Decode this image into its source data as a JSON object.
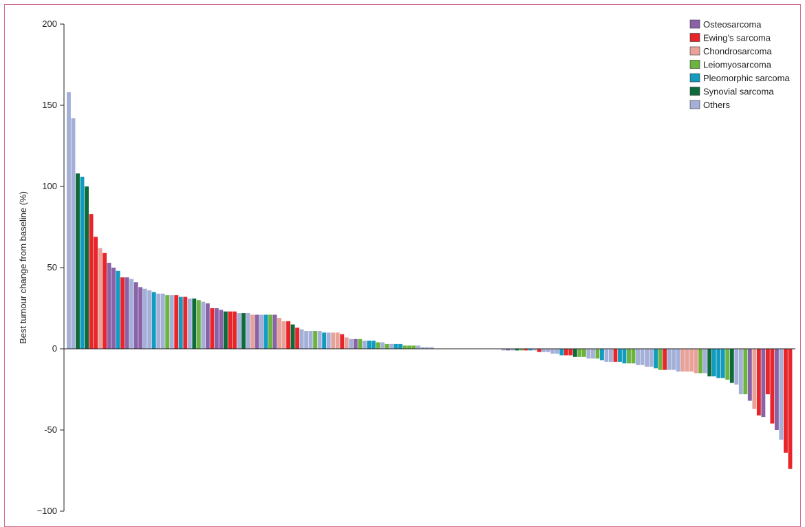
{
  "chart_data": {
    "type": "bar",
    "title": "",
    "xlabel": "",
    "ylabel": "Best tumour change from baseline (%)",
    "ylim": [
      -100,
      200
    ],
    "yticks": [
      {
        "value": 200,
        "label": "200"
      },
      {
        "value": 150,
        "label": "150"
      },
      {
        "value": 100,
        "label": "100"
      },
      {
        "value": 50,
        "label": "50"
      },
      {
        "value": 0,
        "label": "0"
      },
      {
        "value": -50,
        "label": "-50"
      },
      {
        "value": -100,
        "label": "−100"
      }
    ],
    "grid": false,
    "legend_position": "top-right",
    "legend": [
      {
        "key": "O",
        "name": "Osteosarcoma",
        "color": "#8a62a8"
      },
      {
        "key": "E",
        "name": "Ewing’s sarcoma",
        "color": "#e8262a"
      },
      {
        "key": "C",
        "name": "Chondrosarcoma",
        "color": "#e8a29a"
      },
      {
        "key": "L",
        "name": "Leiomyosarcoma",
        "color": "#6db33f"
      },
      {
        "key": "P",
        "name": "Pleomorphic sarcoma",
        "color": "#139bbf"
      },
      {
        "key": "S",
        "name": "Synovial sarcoma",
        "color": "#0f6b3c"
      },
      {
        "key": "X",
        "name": "Others",
        "color": "#a4b0d8"
      }
    ],
    "bars": [
      {
        "v": 158,
        "c": "X"
      },
      {
        "v": 142,
        "c": "X"
      },
      {
        "v": 108,
        "c": "S"
      },
      {
        "v": 106,
        "c": "P"
      },
      {
        "v": 100,
        "c": "S"
      },
      {
        "v": 83,
        "c": "E"
      },
      {
        "v": 69,
        "c": "E"
      },
      {
        "v": 62,
        "c": "C"
      },
      {
        "v": 59,
        "c": "E"
      },
      {
        "v": 53,
        "c": "O"
      },
      {
        "v": 50,
        "c": "O"
      },
      {
        "v": 48,
        "c": "P"
      },
      {
        "v": 44,
        "c": "E"
      },
      {
        "v": 44,
        "c": "O"
      },
      {
        "v": 43,
        "c": "X"
      },
      {
        "v": 41,
        "c": "O"
      },
      {
        "v": 38,
        "c": "O"
      },
      {
        "v": 37,
        "c": "X"
      },
      {
        "v": 36,
        "c": "X"
      },
      {
        "v": 35,
        "c": "P"
      },
      {
        "v": 34,
        "c": "X"
      },
      {
        "v": 34,
        "c": "X"
      },
      {
        "v": 33,
        "c": "L"
      },
      {
        "v": 33,
        "c": "X"
      },
      {
        "v": 33,
        "c": "E"
      },
      {
        "v": 32,
        "c": "P"
      },
      {
        "v": 32,
        "c": "E"
      },
      {
        "v": 31,
        "c": "X"
      },
      {
        "v": 31,
        "c": "S"
      },
      {
        "v": 30,
        "c": "L"
      },
      {
        "v": 29,
        "c": "X"
      },
      {
        "v": 28,
        "c": "O"
      },
      {
        "v": 25,
        "c": "E"
      },
      {
        "v": 25,
        "c": "O"
      },
      {
        "v": 24,
        "c": "O"
      },
      {
        "v": 23,
        "c": "S"
      },
      {
        "v": 23,
        "c": "E"
      },
      {
        "v": 23,
        "c": "E"
      },
      {
        "v": 22,
        "c": "X"
      },
      {
        "v": 22,
        "c": "S"
      },
      {
        "v": 22,
        "c": "X"
      },
      {
        "v": 21,
        "c": "C"
      },
      {
        "v": 21,
        "c": "O"
      },
      {
        "v": 21,
        "c": "X"
      },
      {
        "v": 21,
        "c": "P"
      },
      {
        "v": 21,
        "c": "L"
      },
      {
        "v": 21,
        "c": "O"
      },
      {
        "v": 19,
        "c": "C"
      },
      {
        "v": 17,
        "c": "C"
      },
      {
        "v": 17,
        "c": "E"
      },
      {
        "v": 15,
        "c": "S"
      },
      {
        "v": 13,
        "c": "E"
      },
      {
        "v": 12,
        "c": "X"
      },
      {
        "v": 11,
        "c": "X"
      },
      {
        "v": 11,
        "c": "X"
      },
      {
        "v": 11,
        "c": "L"
      },
      {
        "v": 11,
        "c": "X"
      },
      {
        "v": 10,
        "c": "P"
      },
      {
        "v": 10,
        "c": "X"
      },
      {
        "v": 10,
        "c": "C"
      },
      {
        "v": 10,
        "c": "C"
      },
      {
        "v": 9,
        "c": "E"
      },
      {
        "v": 7,
        "c": "C"
      },
      {
        "v": 6,
        "c": "X"
      },
      {
        "v": 6,
        "c": "O"
      },
      {
        "v": 6,
        "c": "L"
      },
      {
        "v": 5,
        "c": "X"
      },
      {
        "v": 5,
        "c": "P"
      },
      {
        "v": 5,
        "c": "P"
      },
      {
        "v": 4,
        "c": "L"
      },
      {
        "v": 4,
        "c": "X"
      },
      {
        "v": 3,
        "c": "L"
      },
      {
        "v": 3,
        "c": "X"
      },
      {
        "v": 3,
        "c": "P"
      },
      {
        "v": 3,
        "c": "P"
      },
      {
        "v": 2,
        "c": "L"
      },
      {
        "v": 2,
        "c": "L"
      },
      {
        "v": 2,
        "c": "L"
      },
      {
        "v": 2,
        "c": "X"
      },
      {
        "v": 1,
        "c": "X"
      },
      {
        "v": 1,
        "c": "X"
      },
      {
        "v": 1,
        "c": "X"
      },
      {
        "v": 0,
        "c": "X"
      },
      {
        "v": 0,
        "c": "X"
      },
      {
        "v": 0,
        "c": "X"
      },
      {
        "v": 0,
        "c": "X"
      },
      {
        "v": 0,
        "c": "X"
      },
      {
        "v": 0,
        "c": "X"
      },
      {
        "v": 0,
        "c": "X"
      },
      {
        "v": 0,
        "c": "X"
      },
      {
        "v": 0,
        "c": "X"
      },
      {
        "v": 0,
        "c": "X"
      },
      {
        "v": 0,
        "c": "X"
      },
      {
        "v": 0,
        "c": "X"
      },
      {
        "v": 0,
        "c": "X"
      },
      {
        "v": 0,
        "c": "X"
      },
      {
        "v": 0,
        "c": "X"
      },
      {
        "v": -1,
        "c": "X"
      },
      {
        "v": -1,
        "c": "O"
      },
      {
        "v": -1,
        "c": "X"
      },
      {
        "v": -1,
        "c": "S"
      },
      {
        "v": -1,
        "c": "L"
      },
      {
        "v": -1,
        "c": "E"
      },
      {
        "v": -1,
        "c": "P"
      },
      {
        "v": -1,
        "c": "X"
      },
      {
        "v": -2,
        "c": "E"
      },
      {
        "v": -2,
        "c": "X"
      },
      {
        "v": -2,
        "c": "X"
      },
      {
        "v": -3,
        "c": "X"
      },
      {
        "v": -3,
        "c": "X"
      },
      {
        "v": -4,
        "c": "P"
      },
      {
        "v": -4,
        "c": "E"
      },
      {
        "v": -4,
        "c": "E"
      },
      {
        "v": -5,
        "c": "S"
      },
      {
        "v": -5,
        "c": "L"
      },
      {
        "v": -5,
        "c": "L"
      },
      {
        "v": -6,
        "c": "X"
      },
      {
        "v": -6,
        "c": "X"
      },
      {
        "v": -6,
        "c": "L"
      },
      {
        "v": -7,
        "c": "P"
      },
      {
        "v": -8,
        "c": "X"
      },
      {
        "v": -8,
        "c": "X"
      },
      {
        "v": -8,
        "c": "E"
      },
      {
        "v": -8,
        "c": "P"
      },
      {
        "v": -9,
        "c": "P"
      },
      {
        "v": -9,
        "c": "L"
      },
      {
        "v": -9,
        "c": "L"
      },
      {
        "v": -10,
        "c": "X"
      },
      {
        "v": -10,
        "c": "X"
      },
      {
        "v": -11,
        "c": "X"
      },
      {
        "v": -11,
        "c": "X"
      },
      {
        "v": -12,
        "c": "P"
      },
      {
        "v": -13,
        "c": "L"
      },
      {
        "v": -13,
        "c": "E"
      },
      {
        "v": -13,
        "c": "X"
      },
      {
        "v": -13,
        "c": "X"
      },
      {
        "v": -14,
        "c": "X"
      },
      {
        "v": -14,
        "c": "C"
      },
      {
        "v": -14,
        "c": "C"
      },
      {
        "v": -14,
        "c": "C"
      },
      {
        "v": -15,
        "c": "C"
      },
      {
        "v": -15,
        "c": "L"
      },
      {
        "v": -15,
        "c": "X"
      },
      {
        "v": -17,
        "c": "S"
      },
      {
        "v": -17,
        "c": "P"
      },
      {
        "v": -18,
        "c": "P"
      },
      {
        "v": -18,
        "c": "P"
      },
      {
        "v": -19,
        "c": "L"
      },
      {
        "v": -21,
        "c": "S"
      },
      {
        "v": -22,
        "c": "X"
      },
      {
        "v": -28,
        "c": "X"
      },
      {
        "v": -28,
        "c": "L"
      },
      {
        "v": -32,
        "c": "O"
      },
      {
        "v": -37,
        "c": "C"
      },
      {
        "v": -41,
        "c": "E"
      },
      {
        "v": -42,
        "c": "O"
      },
      {
        "v": -28,
        "c": "E"
      },
      {
        "v": -46,
        "c": "E"
      },
      {
        "v": -50,
        "c": "O"
      },
      {
        "v": -56,
        "c": "X"
      },
      {
        "v": -64,
        "c": "E"
      },
      {
        "v": -74,
        "c": "E"
      }
    ]
  }
}
